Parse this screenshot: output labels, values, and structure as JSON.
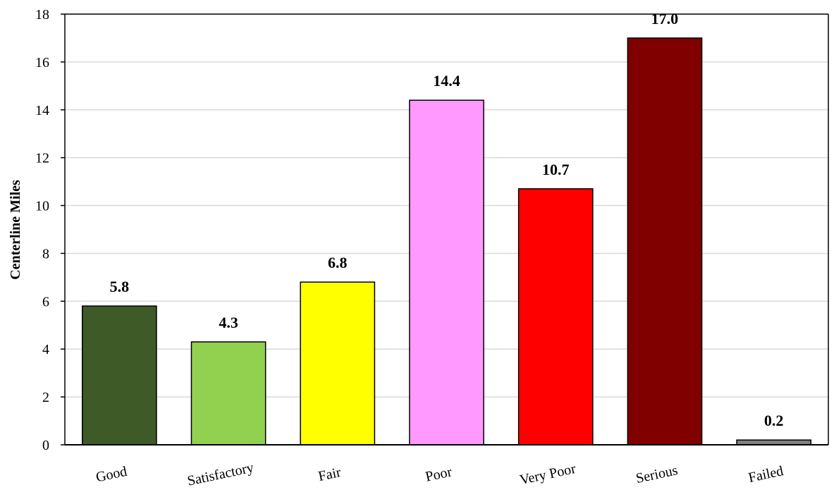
{
  "chart_data": {
    "type": "bar",
    "title": "",
    "xlabel": "",
    "ylabel": "Centerline Miles",
    "ylim": [
      0,
      18
    ],
    "yticks": [
      0,
      2,
      4,
      6,
      8,
      10,
      12,
      14,
      16,
      18
    ],
    "grid": true,
    "categories": [
      "Good",
      "Satisfactory",
      "Fair",
      "Poor",
      "Very Poor",
      "Serious",
      "Failed"
    ],
    "values": [
      5.8,
      4.3,
      6.8,
      14.4,
      10.7,
      17.0,
      0.2
    ],
    "data_labels": [
      "5.8",
      "4.3",
      "6.8",
      "14.4",
      "10.7",
      "17.0",
      "0.2"
    ],
    "colors": [
      "#3D5A27",
      "#92D050",
      "#FFFF00",
      "#FF99FF",
      "#FF0000",
      "#800000",
      "#7F7F7F"
    ]
  }
}
